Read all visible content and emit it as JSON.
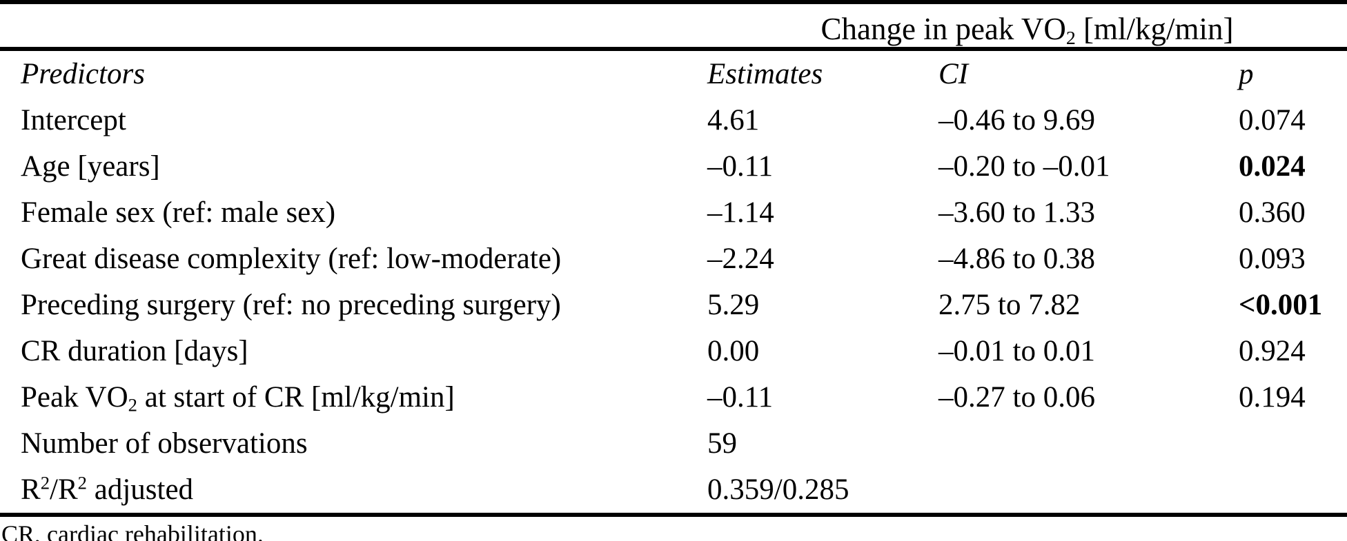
{
  "table": {
    "span_header": {
      "pre": "Change in peak VO",
      "sub": "2",
      "post": " [ml/kg/min]"
    },
    "columns": {
      "predictors": "Predictors",
      "estimates": "Estimates",
      "ci": "CI",
      "p": "p"
    },
    "rows": [
      {
        "label": "Intercept",
        "estimate": "4.61",
        "ci": "–0.46 to 9.69",
        "p": "0.074",
        "p_bold": false
      },
      {
        "label": "Age [years]",
        "estimate": "–0.11",
        "ci": "–0.20 to –0.01",
        "p": "0.024",
        "p_bold": true
      },
      {
        "label": "Female sex (ref: male sex)",
        "estimate": "–1.14",
        "ci": "–3.60 to 1.33",
        "p": "0.360",
        "p_bold": false
      },
      {
        "label": "Great disease complexity (ref: low-moderate)",
        "estimate": "–2.24",
        "ci": "–4.86 to 0.38",
        "p": "0.093",
        "p_bold": false
      },
      {
        "label": "Preceding surgery (ref: no preceding surgery)",
        "estimate": "5.29",
        "ci": "2.75 to 7.82",
        "p": "<0.001",
        "p_bold": true
      },
      {
        "label": "CR duration [days]",
        "estimate": "0.00",
        "ci": "–0.01 to 0.01",
        "p": "0.924",
        "p_bold": false
      },
      {
        "label_pre": "Peak VO",
        "label_sub": "2",
        "label_post": " at start of CR [ml/kg/min]",
        "estimate": "–0.11",
        "ci": "–0.27 to 0.06",
        "p": "0.194",
        "p_bold": false
      },
      {
        "label": "Number of observations",
        "estimate": "59",
        "ci": "",
        "p": ""
      },
      {
        "label_pre": "R",
        "label_sup1": "2",
        "label_mid": "/R",
        "label_sup2": "2",
        "label_post": " adjusted",
        "estimate": "0.359/0.285",
        "ci": "",
        "p": ""
      }
    ],
    "footnote": "CR, cardiac rehabilitation."
  }
}
